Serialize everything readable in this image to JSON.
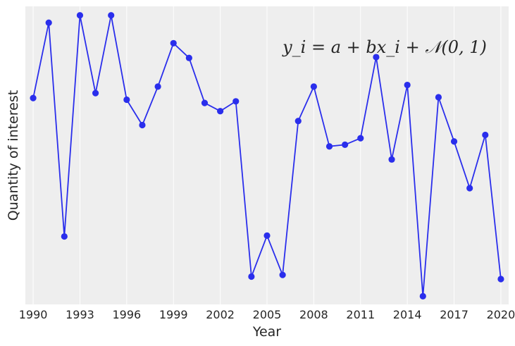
{
  "chart_data": {
    "type": "line",
    "title": "",
    "xlabel": "Year",
    "ylabel": "Quantity of interest",
    "annotation": "y_i = a + bx_i + 𝒩(0, 1)",
    "x": [
      1990,
      1991,
      1992,
      1993,
      1994,
      1995,
      1996,
      1997,
      1998,
      1999,
      2000,
      2001,
      2002,
      2003,
      2004,
      2005,
      2006,
      2007,
      2008,
      2009,
      2010,
      2011,
      2012,
      2013,
      2014,
      2015,
      2016,
      2017,
      2018,
      2019,
      2020
    ],
    "series": [
      {
        "name": "Quantity of interest",
        "values": [
          0.74,
          1.66,
          -0.95,
          1.75,
          0.8,
          1.75,
          0.72,
          0.41,
          0.88,
          1.41,
          1.23,
          0.68,
          0.58,
          0.7,
          -1.44,
          -0.94,
          -1.42,
          0.46,
          0.88,
          0.15,
          0.17,
          0.25,
          1.24,
          -0.01,
          0.9,
          -1.68,
          0.75,
          0.21,
          -0.36,
          0.29,
          -1.47
        ]
      }
    ],
    "xticks": [
      "1990",
      "1993",
      "1996",
      "1999",
      "2002",
      "2005",
      "2008",
      "2011",
      "2014",
      "2017",
      "2020"
    ],
    "xlim": [
      1989.5,
      2020.5
    ],
    "ylim": [
      -1.78,
      1.86
    ],
    "grid": true,
    "colors": {
      "line": "#2a2eec",
      "background": "#eeeeee",
      "grid": "#ffffff"
    }
  }
}
